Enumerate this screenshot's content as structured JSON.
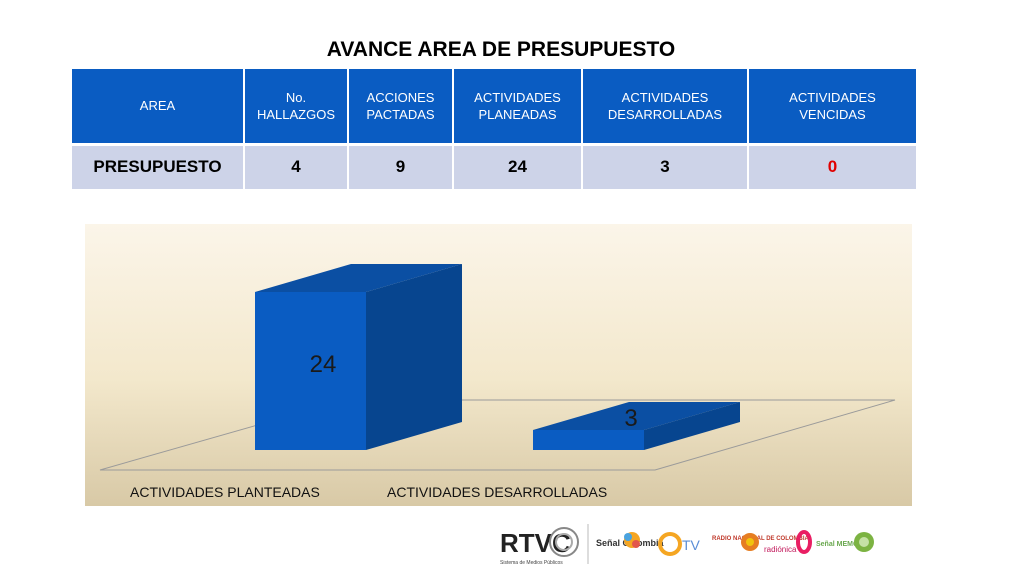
{
  "page": {
    "title": "AVANCE AREA DE PRESUPUESTO"
  },
  "table": {
    "headers": [
      "AREA",
      "No.\nHALLAZGOS",
      "ACCIONES\nPACTADAS",
      "ACTIVIDADES\nPLANEADAS",
      "ACTIVIDADES\nDESARROLLADAS",
      "ACTIVIDADES\nVENCIDAS"
    ],
    "row": [
      "PRESUPUESTO",
      "4",
      "9",
      "24",
      "3",
      "0"
    ],
    "colors": {
      "header_bg": "#0a5cc2",
      "row_bg": "#cdd3e8",
      "zero_value": "#e00000"
    }
  },
  "chart_data": {
    "type": "bar",
    "style": "3d",
    "categories": [
      "ACTIVIDADES PLANTEADAS",
      "ACTIVIDADES DESARROLLADAS"
    ],
    "values": [
      24,
      3
    ],
    "data_labels": [
      "24",
      "3"
    ],
    "title": "",
    "xlabel": "",
    "ylabel": "",
    "ylim": [
      0,
      24
    ],
    "grid": false,
    "legend": "none",
    "colors": {
      "bar_front": "#0a5cc2",
      "bar_side": "#07458f",
      "bar_top": "#0b4fa3",
      "background": "#f6eedb"
    }
  },
  "footer": {
    "logos": [
      {
        "name": "rtvc-logo",
        "text": "RTVC",
        "subtext": "Sistema de Medios Públicos"
      },
      {
        "name": "senal-colombia-logo",
        "text": "Señal Colombia"
      },
      {
        "name": "canal-tv-logo",
        "text": "TV"
      },
      {
        "name": "radio-nacional-logo",
        "text": "RADIO NACIONAL DE COLOMBIA"
      },
      {
        "name": "radionica-logo",
        "text": "radiónica"
      },
      {
        "name": "senal-memoria-logo",
        "text": "Señal MEMORIA"
      }
    ]
  }
}
